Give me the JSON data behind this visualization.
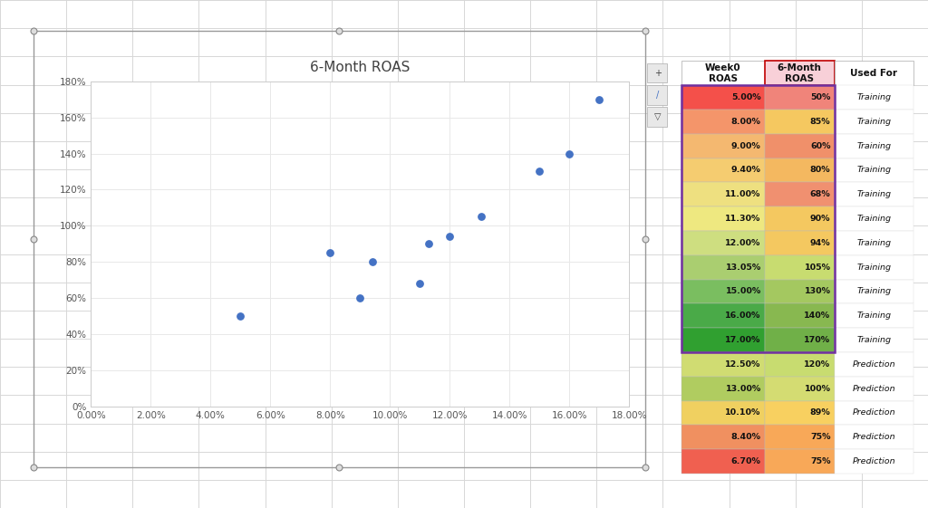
{
  "title": "6-Month ROAS",
  "scatter_x": [
    0.05,
    0.08,
    0.09,
    0.094,
    0.11,
    0.113,
    0.12,
    0.1305,
    0.15,
    0.16,
    0.17
  ],
  "scatter_y": [
    0.5,
    0.85,
    0.6,
    0.8,
    0.68,
    0.9,
    0.94,
    1.05,
    1.3,
    1.4,
    1.7
  ],
  "scatter_color": "#4472C4",
  "x_ticks": [
    0.0,
    0.02,
    0.04,
    0.06,
    0.08,
    0.1,
    0.12,
    0.14,
    0.16,
    0.18
  ],
  "y_ticks": [
    0.0,
    0.2,
    0.4,
    0.6,
    0.8,
    1.0,
    1.2,
    1.4,
    1.6,
    1.8
  ],
  "xlim": [
    0.0,
    0.18
  ],
  "ylim": [
    0.0,
    1.8
  ],
  "x_tick_labels": [
    "0.00%",
    "2.00%",
    "4.00%",
    "6.00%",
    "8.00%",
    "10.00%",
    "12.00%",
    "14.00%",
    "16.00%",
    "18.00%"
  ],
  "y_tick_labels": [
    "0%",
    "20%",
    "40%",
    "60%",
    "80%",
    "100%",
    "120%",
    "140%",
    "160%",
    "180%"
  ],
  "table_week0": [
    "5.00%",
    "8.00%",
    "9.00%",
    "9.40%",
    "11.00%",
    "11.30%",
    "12.00%",
    "13.05%",
    "15.00%",
    "16.00%",
    "17.00%",
    "12.50%",
    "13.00%",
    "10.10%",
    "8.40%",
    "6.70%"
  ],
  "table_6month": [
    "50%",
    "85%",
    "60%",
    "80%",
    "68%",
    "90%",
    "94%",
    "105%",
    "130%",
    "140%",
    "170%",
    "120%",
    "100%",
    "89%",
    "75%",
    "75%"
  ],
  "table_used_for": [
    "Training",
    "Training",
    "Training",
    "Training",
    "Training",
    "Training",
    "Training",
    "Training",
    "Training",
    "Training",
    "Training",
    "Prediction",
    "Prediction",
    "Prediction",
    "Prediction",
    "Prediction"
  ],
  "row_colors_week0": [
    "#F4504A",
    "#F4956A",
    "#F4B870",
    "#F5CC70",
    "#EEE080",
    "#EEE880",
    "#CEDE80",
    "#AACE70",
    "#7ABE60",
    "#4AAA48",
    "#30A030",
    "#D0DC72",
    "#B0CC60",
    "#F0D060",
    "#F09060",
    "#F06050"
  ],
  "row_colors_6month": [
    "#F0847A",
    "#F5C860",
    "#F0906A",
    "#F4B860",
    "#F09070",
    "#F4C860",
    "#F4C860",
    "#C8DC70",
    "#A4C860",
    "#88B850",
    "#70B048",
    "#C8DC70",
    "#D4DC72",
    "#F8D060",
    "#F8A858",
    "#F8A858"
  ],
  "bg_color": "#FFFFFF",
  "spreadsheet_grid_color": "#D0D0D0",
  "chart_border_color": "#AAAAAA",
  "chart_bg": "#FFFFFF",
  "grid_color": "#E8E8E8",
  "training_border_color": "#7030A0",
  "header_6month_bg": "#F8D0D8",
  "header_6month_border": "#C00000"
}
